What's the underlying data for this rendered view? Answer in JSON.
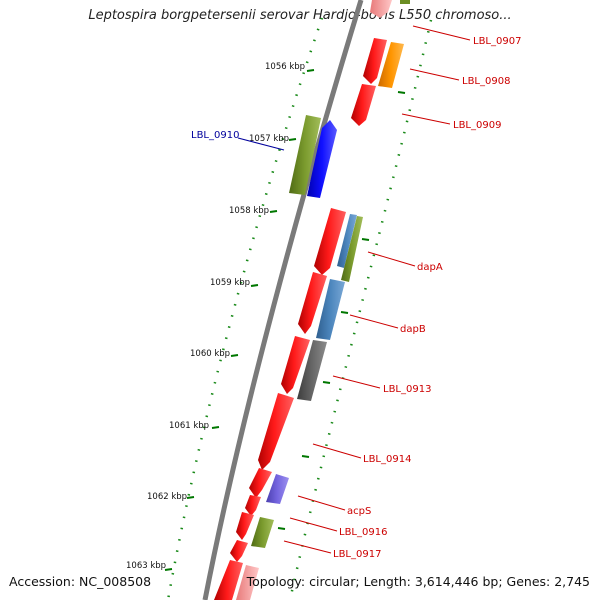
{
  "title": "Leptospira borgpetersenii serovar Hardjo-bovis L550 chromoso...",
  "footer": {
    "accession": "Accession: NC_008508",
    "summary": "Topology: circular; Length: 3,614,446 bp; Genes: 2,745"
  },
  "ticks": [
    {
      "label": "1056 kbp"
    },
    {
      "label": "1057 kbp"
    },
    {
      "label": "1058 kbp"
    },
    {
      "label": "1059 kbp"
    },
    {
      "label": "1060 kbp"
    },
    {
      "label": "1061 kbp"
    },
    {
      "label": "1062 kbp"
    },
    {
      "label": "1063 kbp"
    }
  ],
  "genes": [
    {
      "label": "LBL_0907",
      "color": "#cc0000"
    },
    {
      "label": "LBL_0908",
      "color": "#cc0000"
    },
    {
      "label": "LBL_0909",
      "color": "#cc0000"
    },
    {
      "label": "LBL_0910",
      "color": "#00009c"
    },
    {
      "label": "dapA",
      "color": "#cc0000"
    },
    {
      "label": "dapB",
      "color": "#cc0000"
    },
    {
      "label": "LBL_0913",
      "color": "#cc0000"
    },
    {
      "label": "LBL_0914",
      "color": "#cc0000"
    },
    {
      "label": "acpS",
      "color": "#cc0000"
    },
    {
      "label": "LBL_0916",
      "color": "#cc0000"
    },
    {
      "label": "LBL_0917",
      "color": "#cc0000"
    }
  ],
  "colors": {
    "backbone": "#7a7a7a",
    "forward_cds": "#ff0000",
    "orange_feature": "#ff8c00",
    "olive_feature": "#6b8e23",
    "blue_feature": "#0000ff",
    "steelblue_feature": "#4682b4",
    "gray_feature": "#606060",
    "slate_feature": "#6a5acd",
    "tick_green": "#007700"
  }
}
